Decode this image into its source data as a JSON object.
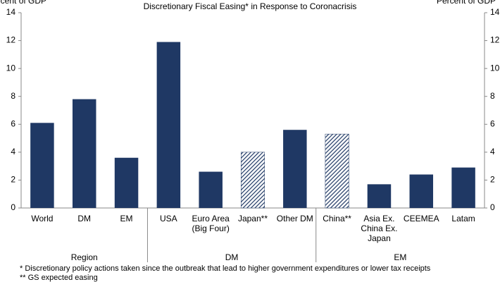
{
  "chart_data": {
    "type": "bar",
    "title": "Discretionary Fiscal Easing* in Response to Coronacrisis",
    "ylabel": "Percent of GDP",
    "y2label": "Percent of GDP",
    "categories": [
      "World",
      "DM",
      "EM",
      "USA",
      "Euro Area (Big Four)",
      "Japan**",
      "Other DM",
      "China**",
      "Asia Ex. China Ex. Japan",
      "CEEMEA",
      "Latam"
    ],
    "values": [
      6.1,
      7.8,
      3.6,
      11.9,
      2.6,
      4.0,
      5.6,
      5.3,
      1.7,
      2.4,
      2.9
    ],
    "hatched": [
      false,
      false,
      false,
      false,
      false,
      true,
      false,
      true,
      false,
      false,
      false
    ],
    "color": "#1f3864",
    "groups": [
      {
        "name": "Region",
        "count": 3
      },
      {
        "name": "DM",
        "count": 4
      },
      {
        "name": "EM",
        "count": 4
      }
    ],
    "ylim": [
      0,
      14
    ],
    "yticks": [
      0,
      2,
      4,
      6,
      8,
      10,
      12,
      14
    ],
    "y2lim": [
      0,
      14
    ],
    "y2ticks": [
      0,
      2,
      4,
      6,
      8,
      10,
      12,
      14
    ],
    "grid": false,
    "footnotes": [
      "* Discretionary policy actions taken since the outbreak that lead to higher government expenditures or lower tax receipts",
      "** GS expected easing"
    ]
  }
}
